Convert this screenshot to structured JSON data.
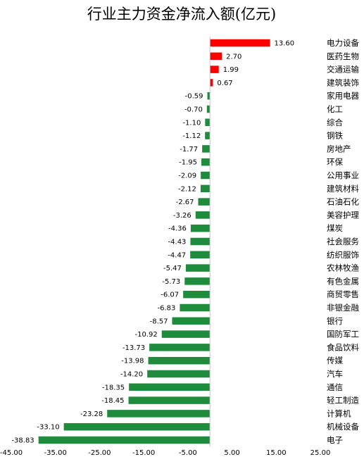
{
  "chart_data": {
    "type": "bar",
    "orientation": "horizontal",
    "title": "行业主力资金净流入额(亿元)",
    "categories": [
      "电力设备",
      "医药生物",
      "交通运输",
      "建筑装饰",
      "家用电器",
      "化工",
      "综合",
      "钢铁",
      "房地产",
      "环保",
      "公用事业",
      "建筑材料",
      "石油石化",
      "美容护理",
      "煤炭",
      "社会服务",
      "纺织服饰",
      "农林牧渔",
      "有色金属",
      "商贸零售",
      "非银金融",
      "银行",
      "国防军工",
      "食品饮料",
      "传媒",
      "汽车",
      "通信",
      "轻工制造",
      "计算机",
      "机械设备",
      "电子"
    ],
    "values": [
      13.6,
      2.7,
      1.99,
      0.67,
      -0.59,
      -0.7,
      -1.1,
      -1.12,
      -1.77,
      -1.95,
      -2.09,
      -2.12,
      -2.67,
      -3.26,
      -4.36,
      -4.43,
      -4.47,
      -5.47,
      -5.73,
      -6.07,
      -6.83,
      -8.57,
      -10.92,
      -13.73,
      -13.98,
      -14.2,
      -18.35,
      -18.45,
      -23.28,
      -33.1,
      -38.83
    ],
    "value_labels": [
      "13.60",
      "2.70",
      "1.99",
      "0.67",
      "-0.59",
      "-0.70",
      "-1.10",
      "-1.12",
      "-1.77",
      "-1.95",
      "-2.09",
      "-2.12",
      "-2.67",
      "-3.26",
      "-4.36",
      "-4.43",
      "-4.47",
      "-5.47",
      "-5.73",
      "-6.07",
      "-6.83",
      "-8.57",
      "-10.92",
      "-13.73",
      "-13.98",
      "-14.20",
      "-18.35",
      "-18.45",
      "-23.28",
      "-33.10",
      "-38.83"
    ],
    "xlim": [
      -45,
      25
    ],
    "xticks": [
      -45,
      -35,
      -25,
      -15,
      -5,
      5,
      15,
      25
    ],
    "xtick_labels": [
      "-45.00",
      "-35.00",
      "-25.00",
      "-15.00",
      "-5.00",
      "5.00",
      "15.00",
      "25.00"
    ],
    "xlabel": "",
    "ylabel": "",
    "grid": false,
    "legend": "none",
    "colors": {
      "positive": "#ff0000",
      "negative": "#1e8c3c"
    }
  }
}
